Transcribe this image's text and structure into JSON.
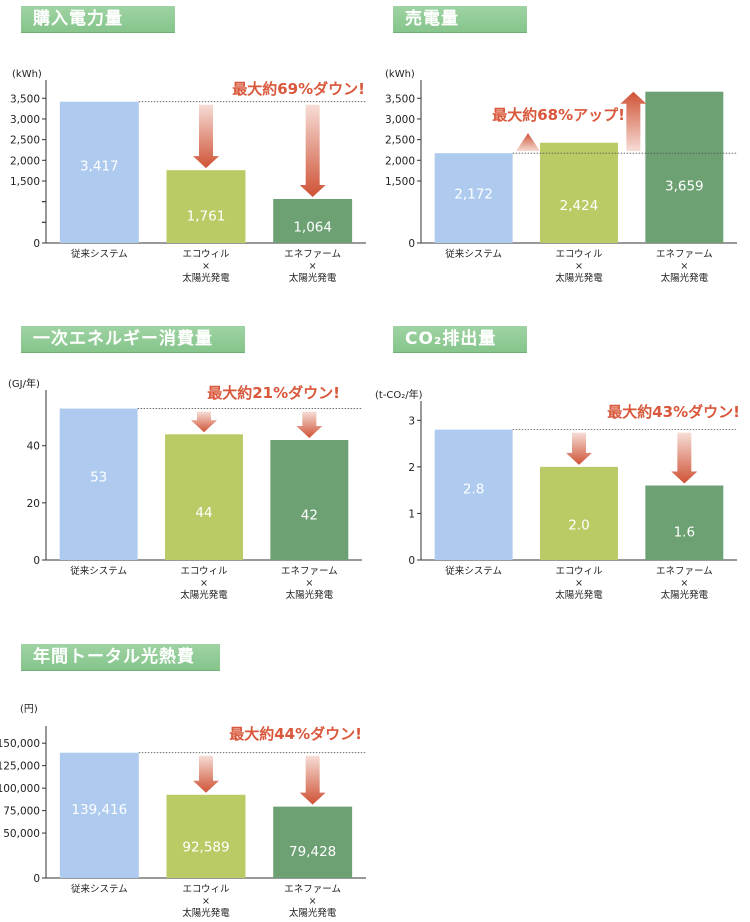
{
  "colors": {
    "blue": "#aecbef",
    "olive": "#bacb66",
    "green": "#6da173",
    "callout": "#d9573a",
    "badge": "#8dca93"
  },
  "chart_data": [
    {
      "type": "bar",
      "title": "購入電力量",
      "unit": "(kWh)",
      "categories": [
        [
          "従来システム"
        ],
        [
          "エコウィル",
          "×",
          "太陽光発電"
        ],
        [
          "エネファーム",
          "×",
          "太陽光発電"
        ]
      ],
      "values": [
        3417,
        1761,
        1064
      ],
      "value_labels": [
        "3,417",
        "1,761",
        "1,064"
      ],
      "yticks": [
        0,
        500,
        1000,
        1500,
        2000,
        2500,
        3000,
        3500
      ],
      "ytick_labels": [
        "0",
        "",
        "",
        "1,500",
        "2,000",
        "2,500",
        "3,000",
        "3,500"
      ],
      "ylim": [
        0,
        3700
      ],
      "axis_break": true,
      "reference_line": 3417,
      "callout": "最大約69%ダウン!",
      "arrow_dir": "down"
    },
    {
      "type": "bar",
      "title": "売電量",
      "unit": "(kWh)",
      "categories": [
        [
          "従来システム"
        ],
        [
          "エコウィル",
          "×",
          "太陽光発電"
        ],
        [
          "エネファーム",
          "×",
          "太陽光発電"
        ]
      ],
      "values": [
        2172,
        2424,
        3659
      ],
      "value_labels": [
        "2,172",
        "2,424",
        "3,659"
      ],
      "yticks": [
        0,
        1500,
        2000,
        2500,
        3000,
        3500
      ],
      "ytick_labels": [
        "0",
        "1,500",
        "2,000",
        "2,500",
        "3,000",
        "3,500"
      ],
      "ylim": [
        0,
        3700
      ],
      "axis_break": true,
      "reference_line": 2172,
      "callout": "最大約68%アップ!",
      "arrow_dir": "up"
    },
    {
      "type": "bar",
      "title": "一次エネルギー消費量",
      "unit": "(GJ/年)",
      "categories": [
        [
          "従来システム"
        ],
        [
          "エコウィル",
          "×",
          "太陽光発電"
        ],
        [
          "エネファーム",
          "×",
          "太陽光発電"
        ]
      ],
      "values": [
        53,
        44,
        42
      ],
      "value_labels": [
        "53",
        "44",
        "42"
      ],
      "yticks": [
        0,
        20,
        40
      ],
      "ytick_labels": [
        "0",
        "20",
        "40"
      ],
      "ylim": [
        0,
        56
      ],
      "axis_break": false,
      "reference_line": 53,
      "callout": "最大約21%ダウン!",
      "arrow_dir": "down"
    },
    {
      "type": "bar",
      "title": "CO₂排出量",
      "unit": "(t-CO₂/年)",
      "categories": [
        [
          "従来システム"
        ],
        [
          "エコウィル",
          "×",
          "太陽光発電"
        ],
        [
          "エネファーム",
          "×",
          "太陽光発電"
        ]
      ],
      "values": [
        2.8,
        2.0,
        1.6
      ],
      "value_labels": [
        "2.8",
        "2.0",
        "1.6"
      ],
      "yticks": [
        0,
        1,
        2,
        3
      ],
      "ytick_labels": [
        "0",
        "1",
        "2",
        "3"
      ],
      "ylim": [
        0,
        3.2
      ],
      "axis_break": false,
      "reference_line": 2.8,
      "callout": "最大約43%ダウン!",
      "arrow_dir": "down"
    },
    {
      "type": "bar",
      "title": "年間トータル光熱費",
      "unit": "(円)",
      "categories": [
        [
          "従来システム"
        ],
        [
          "エコウィル",
          "×",
          "太陽光発電"
        ],
        [
          "エネファーム",
          "×",
          "太陽光発電"
        ]
      ],
      "values": [
        139416,
        92589,
        79428
      ],
      "value_labels": [
        "139,416",
        "92,589",
        "79,428"
      ],
      "yticks": [
        0,
        50000,
        75000,
        100000,
        125000,
        150000
      ],
      "ytick_labels": [
        "0",
        "50,000",
        "75,000",
        "100,000",
        "125,000",
        "150,000"
      ],
      "ylim": [
        0,
        158000
      ],
      "axis_break": false,
      "reference_line": 139416,
      "callout": "最大約44%ダウン!",
      "arrow_dir": "down"
    }
  ]
}
